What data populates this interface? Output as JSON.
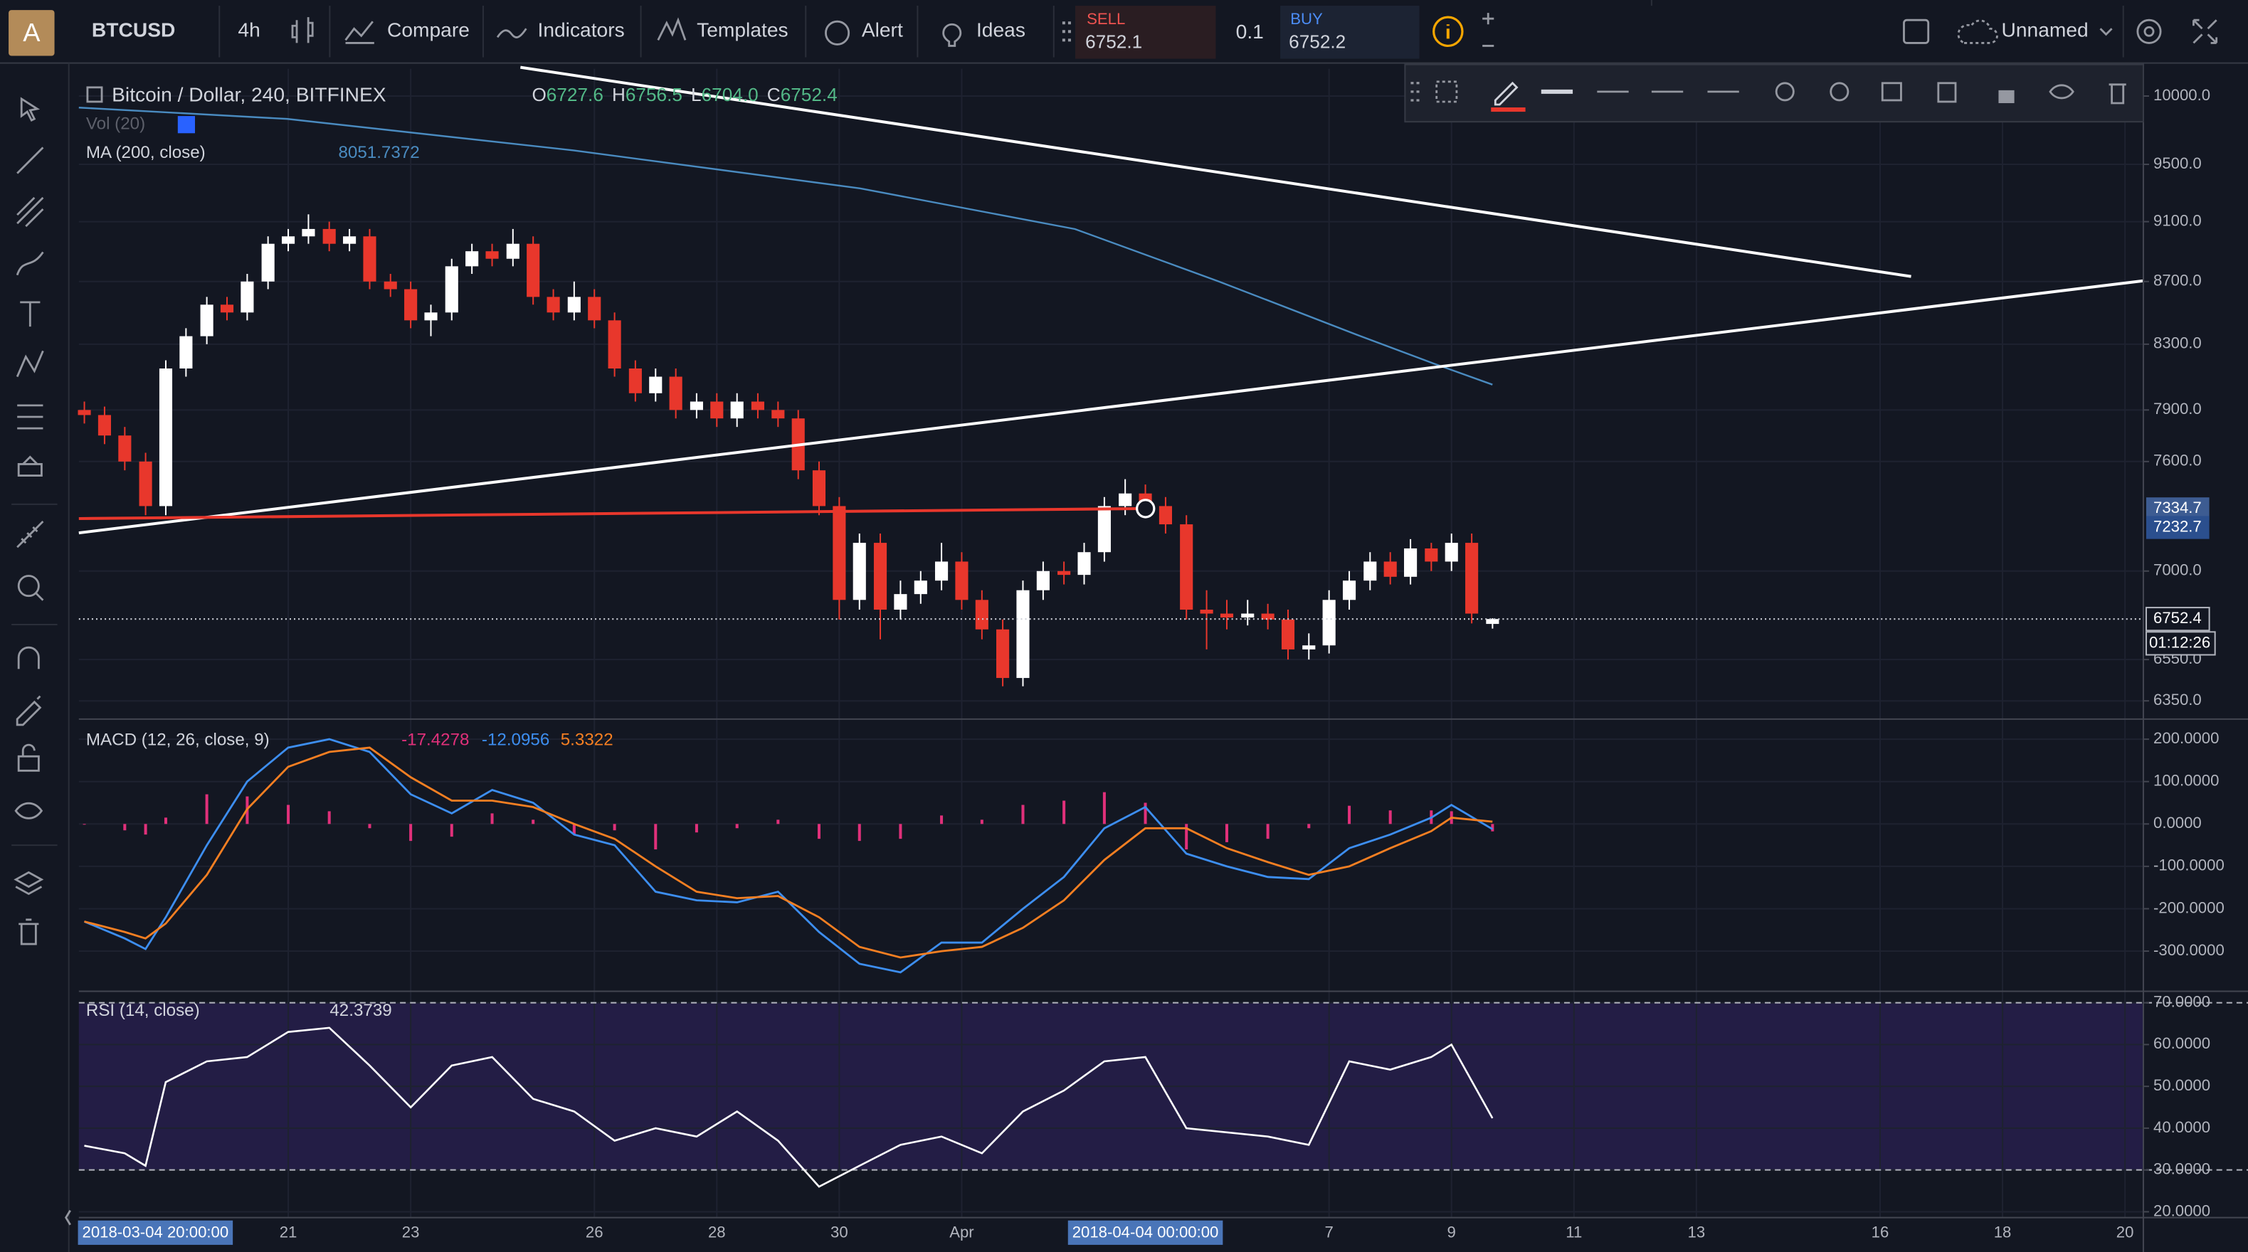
{
  "toolbar": {
    "logo": "A",
    "symbol": "BTCUSD",
    "interval": "4h",
    "compare": "Compare",
    "indicators": "Indicators",
    "templates": "Templates",
    "alert": "Alert",
    "ideas": "Ideas",
    "sell_label": "SELL",
    "sell_price": 6752.1,
    "quantity": 0.1,
    "buy_label": "BUY",
    "buy_price": 6752.2,
    "layout_name": "Unnamed"
  },
  "chart_data": [
    {
      "type": "candlestick",
      "title": "Bitcoin / Dollar, 240, BITFINEX",
      "ohlc_labels": [
        "O",
        "H",
        "L",
        "C"
      ],
      "ohlc_value_labels": [
        "6727.6",
        "6756.5",
        "6704.0",
        "6752.4"
      ],
      "volume_label": "Vol (20)",
      "up_color": "#ffffff",
      "down_color": "#e8372c",
      "log_scale": true,
      "x": [
        -1.33,
        -1,
        -0.67,
        -0.33,
        0,
        0.33,
        0.67,
        1,
        1.33,
        1.67,
        2,
        2.33,
        2.67,
        3,
        3.33,
        3.67,
        4,
        4.33,
        4.67,
        5,
        5.33,
        5.67,
        6,
        6.33,
        6.67,
        7,
        7.33,
        7.67,
        8,
        8.33,
        8.67,
        9,
        9.33,
        9.67,
        10,
        10.33,
        10.67,
        11,
        11.33,
        11.67,
        12,
        12.33,
        12.67,
        13,
        13.33,
        13.67,
        14,
        14.33,
        14.67,
        15,
        15.33,
        15.67,
        16,
        16.33,
        16.67,
        17,
        17.33,
        17.67,
        18,
        18.33,
        18.67,
        19,
        19.33,
        19.67,
        20,
        20.33,
        20.67,
        21,
        21.33,
        21.67
      ],
      "candles": [
        [
          7900,
          7950,
          7820,
          7870
        ],
        [
          7870,
          7920,
          7700,
          7750
        ],
        [
          7750,
          7800,
          7550,
          7600
        ],
        [
          7600,
          7650,
          7300,
          7350
        ],
        [
          7350,
          8200,
          7300,
          8150
        ],
        [
          8150,
          8400,
          8100,
          8350
        ],
        [
          8350,
          8600,
          8300,
          8550
        ],
        [
          8550,
          8600,
          8450,
          8500
        ],
        [
          8500,
          8750,
          8450,
          8700
        ],
        [
          8700,
          9000,
          8650,
          8950
        ],
        [
          8950,
          9050,
          8900,
          9000
        ],
        [
          9000,
          9150,
          8950,
          9050
        ],
        [
          9050,
          9100,
          8900,
          8950
        ],
        [
          8950,
          9050,
          8900,
          9000
        ],
        [
          9000,
          9050,
          8650,
          8700
        ],
        [
          8700,
          8750,
          8600,
          8650
        ],
        [
          8650,
          8700,
          8400,
          8450
        ],
        [
          8450,
          8550,
          8350,
          8500
        ],
        [
          8500,
          8850,
          8450,
          8800
        ],
        [
          8800,
          8950,
          8750,
          8900
        ],
        [
          8900,
          8950,
          8800,
          8850
        ],
        [
          8850,
          9050,
          8800,
          8950
        ],
        [
          8950,
          9000,
          8550,
          8600
        ],
        [
          8600,
          8650,
          8450,
          8500
        ],
        [
          8500,
          8700,
          8450,
          8600
        ],
        [
          8600,
          8650,
          8400,
          8450
        ],
        [
          8450,
          8500,
          8100,
          8150
        ],
        [
          8150,
          8200,
          7950,
          8000
        ],
        [
          8000,
          8150,
          7950,
          8100
        ],
        [
          8100,
          8150,
          7850,
          7900
        ],
        [
          7900,
          8000,
          7850,
          7950
        ],
        [
          7950,
          8000,
          7800,
          7850
        ],
        [
          7850,
          8000,
          7800,
          7950
        ],
        [
          7950,
          8000,
          7850,
          7900
        ],
        [
          7900,
          7950,
          7800,
          7850
        ],
        [
          7850,
          7900,
          7500,
          7550
        ],
        [
          7550,
          7600,
          7300,
          7350
        ],
        [
          7350,
          7400,
          6750,
          6850
        ],
        [
          6850,
          7200,
          6800,
          7150
        ],
        [
          7150,
          7200,
          6650,
          6800
        ],
        [
          6800,
          6950,
          6750,
          6880
        ],
        [
          6880,
          7000,
          6830,
          6950
        ],
        [
          6950,
          7150,
          6900,
          7050
        ],
        [
          7050,
          7100,
          6800,
          6850
        ],
        [
          6850,
          6900,
          6650,
          6700
        ],
        [
          6700,
          6750,
          6420,
          6460
        ],
        [
          6460,
          6950,
          6420,
          6900
        ],
        [
          6900,
          7050,
          6850,
          7000
        ],
        [
          7000,
          7050,
          6930,
          6980
        ],
        [
          6980,
          7150,
          6930,
          7100
        ],
        [
          7100,
          7400,
          7050,
          7350
        ],
        [
          7350,
          7500,
          7300,
          7420
        ],
        [
          7420,
          7470,
          7300,
          7350
        ],
        [
          7350,
          7400,
          7200,
          7250
        ],
        [
          7250,
          7300,
          6750,
          6800
        ],
        [
          6800,
          6900,
          6600,
          6780
        ],
        [
          6780,
          6850,
          6700,
          6760
        ],
        [
          6760,
          6850,
          6720,
          6780
        ],
        [
          6780,
          6830,
          6700,
          6750
        ],
        [
          6750,
          6800,
          6550,
          6600
        ],
        [
          6600,
          6680,
          6550,
          6620
        ],
        [
          6620,
          6900,
          6580,
          6850
        ],
        [
          6850,
          7000,
          6800,
          6950
        ],
        [
          6950,
          7100,
          6900,
          7050
        ],
        [
          7050,
          7100,
          6930,
          6970
        ],
        [
          6970,
          7170,
          6930,
          7120
        ],
        [
          7120,
          7150,
          7000,
          7050
        ],
        [
          7050,
          7200,
          7000,
          7150
        ],
        [
          7150,
          7200,
          6730,
          6780
        ],
        [
          6727.6,
          6756.5,
          6704,
          6752.4
        ]
      ],
      "series": [
        {
          "name": "MA (200, close)",
          "color": "#4a8bc0",
          "x": [
            -1.42,
            1.98,
            6.66,
            11.34,
            14.85,
            17.2,
            19.54,
            20.71,
            21.67
          ],
          "values": [
            9914,
            9830,
            9600,
            9330,
            9050,
            8700,
            8346,
            8180,
            8051.7372
          ]
        }
      ],
      "ylim": [
        6277,
        10207
      ],
      "yticks": [
        {
          "value": 10000,
          "label": "10000.0"
        },
        {
          "value": 9500,
          "label": "9500.0"
        },
        {
          "value": 9100,
          "label": "9100.0"
        },
        {
          "value": 8700,
          "label": "8700.0"
        },
        {
          "value": 8300,
          "label": "8300.0"
        },
        {
          "value": 7900,
          "label": "7900.0"
        },
        {
          "value": 7600,
          "label": "7600.0"
        },
        {
          "value": 7000,
          "label": "7000.0"
        },
        {
          "value": 6550,
          "label": "6550.0"
        },
        {
          "value": 6350,
          "label": "6350.0"
        }
      ],
      "xlim": [
        -1.42,
        32.3
      ],
      "xticks": [
        {
          "value": 2,
          "label": "21"
        },
        {
          "value": 4,
          "label": "23"
        },
        {
          "value": 7,
          "label": "26"
        },
        {
          "value": 9,
          "label": "28"
        },
        {
          "value": 11,
          "label": "30"
        },
        {
          "value": 13,
          "label": "Apr"
        },
        {
          "value": 19,
          "label": "7"
        },
        {
          "value": 21,
          "label": "9"
        },
        {
          "value": 23,
          "label": "11"
        },
        {
          "value": 25,
          "label": "13"
        },
        {
          "value": 28,
          "label": "16"
        },
        {
          "value": 30,
          "label": "18"
        },
        {
          "value": 32,
          "label": "20"
        }
      ],
      "x_cursor_labels": [
        {
          "value": -0.17,
          "label": "2018-03-04 20:00:00"
        },
        {
          "value": 16,
          "label": "2018-04-04 00:00:00"
        }
      ],
      "price_markers": [
        7334.7,
        7232.7
      ],
      "countdown": "01:12:26"
    },
    {
      "type": "macd",
      "title": "MACD (12, 26, close, 9)",
      "x": [
        -1.33,
        -0.67,
        -0.33,
        0,
        0.67,
        1.33,
        2,
        2.67,
        3.33,
        4,
        4.67,
        5.33,
        6,
        6.67,
        7.33,
        8,
        8.67,
        9.33,
        10,
        10.67,
        11.33,
        12,
        12.67,
        13.33,
        14,
        14.67,
        15.33,
        16,
        16.67,
        17.33,
        18,
        18.67,
        19.33,
        20,
        20.67,
        21,
        21.67
      ],
      "series": [
        {
          "style": "histogram",
          "color": "#e0307a",
          "values": [
            0,
            -15,
            -25,
            15,
            70,
            65,
            45,
            30,
            -10,
            -40,
            -30,
            25,
            10,
            -25,
            -15,
            -60,
            -20,
            -10,
            10,
            -35,
            -40,
            -35,
            20,
            10,
            45,
            55,
            75,
            50,
            -60,
            -43,
            -35,
            -10,
            43,
            32,
            32,
            30,
            -17.4278
          ]
        },
        {
          "style": "line",
          "color": "#3d8ef0",
          "values": [
            -230,
            -270,
            -295,
            -220,
            -50,
            100,
            180,
            200,
            170,
            70,
            25,
            80,
            50,
            -25,
            -50,
            -160,
            -180,
            -185,
            -160,
            -255,
            -330,
            -350,
            -280,
            -280,
            -200,
            -125,
            -10,
            40,
            -70,
            -100,
            -125,
            -130,
            -57,
            -25,
            15,
            45,
            -12.0956
          ]
        },
        {
          "style": "line",
          "color": "#f57f22",
          "values": [
            -230,
            -255,
            -270,
            -235,
            -120,
            35,
            135,
            170,
            180,
            110,
            55,
            55,
            40,
            0,
            -35,
            -100,
            -160,
            -175,
            -170,
            -220,
            -290,
            -315,
            -300,
            -290,
            -245,
            -180,
            -85,
            -10,
            -10,
            -57,
            -90,
            -120,
            -100,
            -57,
            -17,
            15,
            5.3322
          ]
        }
      ],
      "ylim": [
        -388,
        244
      ],
      "yticks": [
        {
          "value": 200,
          "label": "200.0000"
        },
        {
          "value": 100,
          "label": "100.0000"
        },
        {
          "value": 0,
          "label": "0.0000"
        },
        {
          "value": -100,
          "label": "-100.0000"
        },
        {
          "value": -200,
          "label": "-200.0000"
        },
        {
          "value": -300,
          "label": "-300.0000"
        }
      ]
    },
    {
      "type": "rsi",
      "title": "RSI (14, close)",
      "x": [
        -1.33,
        -0.67,
        -0.33,
        0,
        0.67,
        1.33,
        2,
        2.67,
        3.33,
        4,
        4.67,
        5.33,
        6,
        6.67,
        7.33,
        8,
        8.67,
        9.33,
        10,
        10.67,
        11.33,
        12,
        12.67,
        13.33,
        14,
        14.67,
        15.33,
        16,
        16.67,
        17.33,
        18,
        18.67,
        19.33,
        20,
        20.67,
        21,
        21.67
      ],
      "series": [
        {
          "color": "#ffffff",
          "values": [
            35.8,
            34,
            31,
            51,
            56,
            57,
            63,
            64,
            55,
            45,
            55,
            57,
            47,
            44,
            37,
            40,
            38,
            44,
            37,
            26,
            31,
            36,
            38,
            34,
            44,
            49,
            56,
            57,
            40,
            39,
            38,
            36,
            56,
            54,
            57,
            60,
            42.3739
          ]
        }
      ],
      "bands": [
        70,
        30
      ],
      "band_color": "#231d45",
      "ylim": [
        18.6,
        72.4
      ],
      "yticks": [
        {
          "value": 70,
          "label": "70.0000"
        },
        {
          "value": 60,
          "label": "60.0000"
        },
        {
          "value": 50,
          "label": "50.0000"
        },
        {
          "value": 40,
          "label": "40.0000"
        },
        {
          "value": 30,
          "label": "30.0000"
        },
        {
          "value": 20,
          "label": "20.0000"
        }
      ]
    }
  ]
}
